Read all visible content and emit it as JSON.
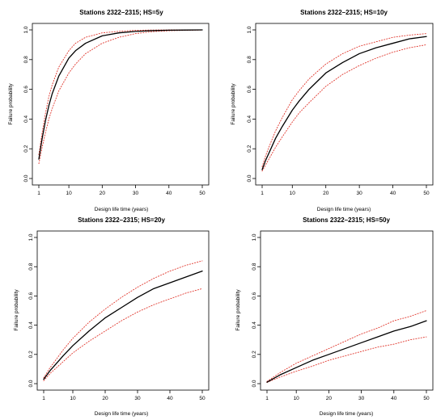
{
  "colors": {
    "estimate": "#000000",
    "bounds": "#e0352b",
    "axis": "#000000"
  },
  "chart_data": [
    {
      "type": "line",
      "title": "Stations 2322–2315; HS=5y",
      "xlabel": "Design life time (years)",
      "ylabel": "Failure probability",
      "xlim": [
        1,
        50
      ],
      "ylim": [
        0,
        1
      ],
      "x_ticks": [
        1,
        10,
        20,
        30,
        40,
        50
      ],
      "y_ticks": [
        0.0,
        0.2,
        0.4,
        0.6,
        0.8,
        1.0
      ],
      "x_tick_labels": [
        "1",
        "10",
        "20",
        "30",
        "40",
        "50"
      ],
      "y_tick_labels": [
        "0.0",
        "0.2",
        "0.4",
        "0.6",
        "0.8",
        "1.0"
      ],
      "x": [
        1,
        2,
        3,
        4,
        5,
        7,
        10,
        12,
        15,
        20,
        25,
        30,
        35,
        40,
        45,
        50
      ],
      "series": [
        {
          "style": "solid",
          "values": [
            0.13,
            0.27,
            0.39,
            0.49,
            0.57,
            0.69,
            0.81,
            0.86,
            0.91,
            0.96,
            0.98,
            0.99,
            0.995,
            0.998,
            0.999,
            1.0
          ]
        },
        {
          "style": "dotted",
          "values": [
            0.16,
            0.31,
            0.44,
            0.55,
            0.63,
            0.75,
            0.86,
            0.91,
            0.95,
            0.98,
            0.99,
            0.997,
            0.999,
            1.0,
            1.0,
            1.0
          ]
        },
        {
          "style": "dotted",
          "values": [
            0.1,
            0.21,
            0.31,
            0.4,
            0.47,
            0.59,
            0.71,
            0.77,
            0.84,
            0.91,
            0.95,
            0.975,
            0.988,
            0.994,
            0.997,
            0.999
          ]
        }
      ]
    },
    {
      "type": "line",
      "title": "Stations 2322–2315; HS=10y",
      "xlabel": "Design life time (years)",
      "ylabel": "Failure probability",
      "xlim": [
        1,
        50
      ],
      "ylim": [
        0,
        1
      ],
      "x_ticks": [
        1,
        10,
        20,
        30,
        40,
        50
      ],
      "y_ticks": [
        0.0,
        0.2,
        0.4,
        0.6,
        0.8,
        1.0
      ],
      "x_tick_labels": [
        "1",
        "10",
        "20",
        "30",
        "40",
        "50"
      ],
      "y_tick_labels": [
        "0.0",
        "0.2",
        "0.4",
        "0.6",
        "0.8",
        "1.0"
      ],
      "x": [
        1,
        2,
        3,
        5,
        7,
        10,
        12,
        15,
        20,
        25,
        30,
        35,
        40,
        45,
        50
      ],
      "series": [
        {
          "style": "solid",
          "values": [
            0.06,
            0.12,
            0.17,
            0.27,
            0.35,
            0.46,
            0.52,
            0.6,
            0.71,
            0.78,
            0.84,
            0.88,
            0.91,
            0.94,
            0.955
          ]
        },
        {
          "style": "dotted",
          "values": [
            0.08,
            0.15,
            0.21,
            0.32,
            0.41,
            0.53,
            0.59,
            0.67,
            0.77,
            0.84,
            0.89,
            0.92,
            0.95,
            0.965,
            0.975
          ]
        },
        {
          "style": "dotted",
          "values": [
            0.05,
            0.09,
            0.13,
            0.21,
            0.28,
            0.38,
            0.44,
            0.51,
            0.62,
            0.7,
            0.76,
            0.81,
            0.85,
            0.88,
            0.9
          ]
        }
      ]
    },
    {
      "type": "line",
      "title": "Stations 2322–2315; HS=20y",
      "xlabel": "Design life time (years)",
      "ylabel": "Failure probability",
      "xlim": [
        1,
        50
      ],
      "ylim": [
        0,
        1
      ],
      "x_ticks": [
        1,
        10,
        20,
        30,
        40,
        50
      ],
      "y_ticks": [
        0.0,
        0.2,
        0.4,
        0.6,
        0.8,
        1.0
      ],
      "x_tick_labels": [
        "1",
        "10",
        "20",
        "30",
        "40",
        "50"
      ],
      "y_tick_labels": [
        "0.0",
        "0.2",
        "0.4",
        "0.6",
        "0.8",
        "1.0"
      ],
      "x": [
        1,
        3,
        5,
        7,
        10,
        15,
        20,
        25,
        30,
        35,
        40,
        45,
        50
      ],
      "series": [
        {
          "style": "solid",
          "values": [
            0.03,
            0.09,
            0.14,
            0.19,
            0.26,
            0.36,
            0.45,
            0.52,
            0.59,
            0.65,
            0.69,
            0.73,
            0.77
          ]
        },
        {
          "style": "dotted",
          "values": [
            0.04,
            0.11,
            0.17,
            0.23,
            0.31,
            0.42,
            0.51,
            0.59,
            0.66,
            0.72,
            0.77,
            0.81,
            0.84
          ]
        },
        {
          "style": "dotted",
          "values": [
            0.02,
            0.07,
            0.11,
            0.15,
            0.21,
            0.29,
            0.36,
            0.43,
            0.49,
            0.54,
            0.58,
            0.62,
            0.65
          ]
        }
      ]
    },
    {
      "type": "line",
      "title": "Stations 2322–2315; HS=50y",
      "xlabel": "Design life time (years)",
      "ylabel": "Failure probability",
      "xlim": [
        1,
        50
      ],
      "ylim": [
        0,
        1
      ],
      "x_ticks": [
        1,
        10,
        20,
        30,
        40,
        50
      ],
      "y_ticks": [
        0.0,
        0.2,
        0.4,
        0.6,
        0.8,
        1.0
      ],
      "x_tick_labels": [
        "1",
        "10",
        "20",
        "30",
        "40",
        "50"
      ],
      "y_tick_labels": [
        "0.0",
        "0.2",
        "0.4",
        "0.6",
        "0.8",
        "1.0"
      ],
      "x": [
        1,
        5,
        10,
        15,
        20,
        25,
        30,
        35,
        40,
        45,
        50
      ],
      "series": [
        {
          "style": "solid",
          "values": [
            0.01,
            0.06,
            0.11,
            0.16,
            0.2,
            0.24,
            0.28,
            0.32,
            0.36,
            0.39,
            0.43
          ]
        },
        {
          "style": "dotted",
          "values": [
            0.015,
            0.075,
            0.14,
            0.19,
            0.24,
            0.29,
            0.34,
            0.38,
            0.43,
            0.46,
            0.5
          ]
        },
        {
          "style": "dotted",
          "values": [
            0.008,
            0.045,
            0.085,
            0.12,
            0.16,
            0.19,
            0.22,
            0.25,
            0.27,
            0.3,
            0.32
          ]
        }
      ]
    }
  ]
}
